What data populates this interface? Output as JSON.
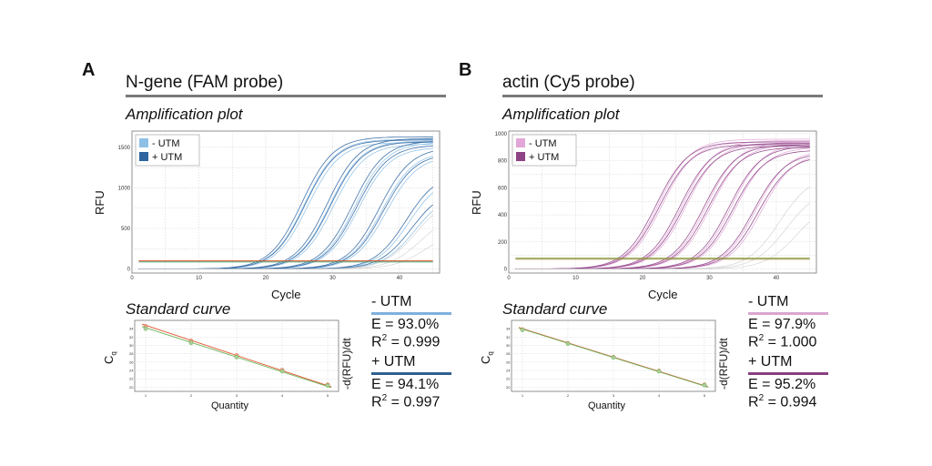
{
  "panels": [
    {
      "letter": "A",
      "title": "N-gene (FAM probe)",
      "amp_label": "Amplification plot",
      "std_label": "Standard curve",
      "rfu_label": "RFU",
      "cycle_label": "Cycle",
      "cq_label": "C",
      "cq_sub": "q",
      "qty_label": "Quantity",
      "drfu_label": "-d(RFU)/dt",
      "stats": [
        {
          "head": "- UTM",
          "e": "E = 93.0%",
          "r2_pre": "R",
          "r2_sup": "2",
          "r2_post": " = 0.999",
          "color": "#7fb0dc"
        },
        {
          "head": "+ UTM",
          "e": "E = 94.1%",
          "r2_pre": "R",
          "r2_sup": "2",
          "r2_post": " = 0.997",
          "color": "#2d5f90"
        }
      ]
    },
    {
      "letter": "B",
      "title": "actin (Cy5 probe)",
      "amp_label": "Amplification plot",
      "std_label": "Standard curve",
      "rfu_label": "RFU",
      "cycle_label": "Cycle",
      "cq_label": "C",
      "cq_sub": "q",
      "qty_label": "Quantity",
      "drfu_label": "-d(RFU)/dt",
      "stats": [
        {
          "head": "- UTM",
          "e": "E = 97.9%",
          "r2_pre": "R",
          "r2_sup": "2",
          "r2_post": " = 1.000",
          "color": "#d9a6cf"
        },
        {
          "head": "+ UTM",
          "e": "E = 95.2%",
          "r2_pre": "R",
          "r2_sup": "2",
          "r2_post": " = 0.994",
          "color": "#8a3f80"
        }
      ]
    }
  ],
  "chart_data": [
    {
      "type": "line",
      "panel": "A",
      "title": "Amplification plot",
      "xlabel": "Cycle",
      "ylabel": "RFU",
      "xlim": [
        0,
        46
      ],
      "ylim": [
        -50,
        1700
      ],
      "xticks": [
        0,
        10,
        20,
        30,
        40
      ],
      "yticks": [
        0,
        500,
        1000,
        1500
      ],
      "grid": true,
      "legend_position": "top-left",
      "legend": [
        {
          "name": "- UTM",
          "color": "#8ec0e6"
        },
        {
          "name": "+ UTM",
          "color": "#2f64a0"
        }
      ],
      "threshold": {
        "value": 100,
        "colors": [
          "#e0542c",
          "#3a9a6a"
        ]
      },
      "curve_groups": [
        {
          "name": "- UTM",
          "color": "#8ec0e6",
          "midpoints": [
            25.8,
            26.3,
            29.6,
            30.1,
            33.4,
            33.9,
            37.4,
            38.0,
            41.4,
            42.3
          ],
          "plateaus": [
            1600,
            1560,
            1580,
            1540,
            1560,
            1500,
            1450,
            1400,
            1150,
            950
          ]
        },
        {
          "name": "+ UTM",
          "color": "#2f64a0",
          "midpoints": [
            25.4,
            25.9,
            29.2,
            29.7,
            33.0,
            33.6,
            37.0,
            37.6,
            41.0,
            41.8
          ],
          "plateaus": [
            1630,
            1590,
            1610,
            1570,
            1580,
            1530,
            1500,
            1430,
            1200,
            1000
          ]
        },
        {
          "name": "grey",
          "color": "#c9c9c9",
          "midpoints": [
            42.5,
            43.2,
            44.0
          ],
          "plateaus": [
            900,
            700,
            500
          ]
        }
      ]
    },
    {
      "type": "scatter",
      "panel": "A",
      "title": "Standard curve",
      "xlabel": "Quantity",
      "ylabel": "Cq",
      "log_x": true,
      "x": [
        1,
        2,
        3,
        4,
        5
      ],
      "series": [
        {
          "name": "- UTM",
          "color": "#e0542c",
          "values": [
            34.6,
            31.1,
            27.6,
            24.1,
            20.6
          ]
        },
        {
          "name": "+ UTM",
          "color": "#6fb35a",
          "values": [
            34.0,
            30.6,
            27.2,
            23.8,
            20.4
          ]
        }
      ],
      "ylim": [
        19,
        36
      ],
      "grid": true
    },
    {
      "type": "line",
      "panel": "B",
      "title": "Amplification plot",
      "xlabel": "Cycle",
      "ylabel": "RFU",
      "xlim": [
        0,
        46
      ],
      "ylim": [
        -30,
        1020
      ],
      "xticks": [
        0,
        10,
        20,
        30,
        40
      ],
      "yticks": [
        0,
        200,
        400,
        600,
        800,
        1000
      ],
      "grid": true,
      "legend_position": "top-left",
      "legend": [
        {
          "name": "- UTM",
          "color": "#e2a6d8"
        },
        {
          "name": "+ UTM",
          "color": "#8e4486"
        }
      ],
      "threshold": {
        "value": 80,
        "colors": [
          "#7a9a3a",
          "#a08a3a"
        ]
      },
      "curve_groups": [
        {
          "name": "- UTM",
          "color": "#e2a6d8",
          "midpoints": [
            22.4,
            22.9,
            26.0,
            26.5,
            29.6,
            30.2,
            33.3,
            33.9,
            37.0,
            37.8
          ],
          "plateaus": [
            960,
            940,
            950,
            930,
            940,
            920,
            930,
            900,
            880,
            860
          ]
        },
        {
          "name": "+ UTM",
          "color": "#8e4486",
          "midpoints": [
            22.0,
            22.5,
            25.6,
            26.1,
            29.2,
            29.8,
            32.9,
            33.5,
            36.6,
            37.3
          ],
          "plateaus": [
            940,
            920,
            930,
            910,
            920,
            900,
            910,
            880,
            860,
            840
          ]
        },
        {
          "name": "grey",
          "color": "#c9c9c9",
          "midpoints": [
            40.5,
            41.5,
            43.0
          ],
          "plateaus": [
            700,
            600,
            500
          ]
        }
      ]
    },
    {
      "type": "scatter",
      "panel": "B",
      "title": "Standard curve",
      "xlabel": "Quantity",
      "ylabel": "Cq",
      "log_x": true,
      "x": [
        1,
        2,
        3,
        4,
        5
      ],
      "series": [
        {
          "name": "- UTM",
          "color": "#e0542c",
          "values": [
            33.8,
            30.5,
            27.2,
            23.9,
            20.6
          ]
        },
        {
          "name": "+ UTM",
          "color": "#6fb35a",
          "values": [
            33.7,
            30.4,
            27.1,
            23.8,
            20.5
          ]
        }
      ],
      "ylim": [
        19,
        36
      ],
      "grid": true
    }
  ]
}
